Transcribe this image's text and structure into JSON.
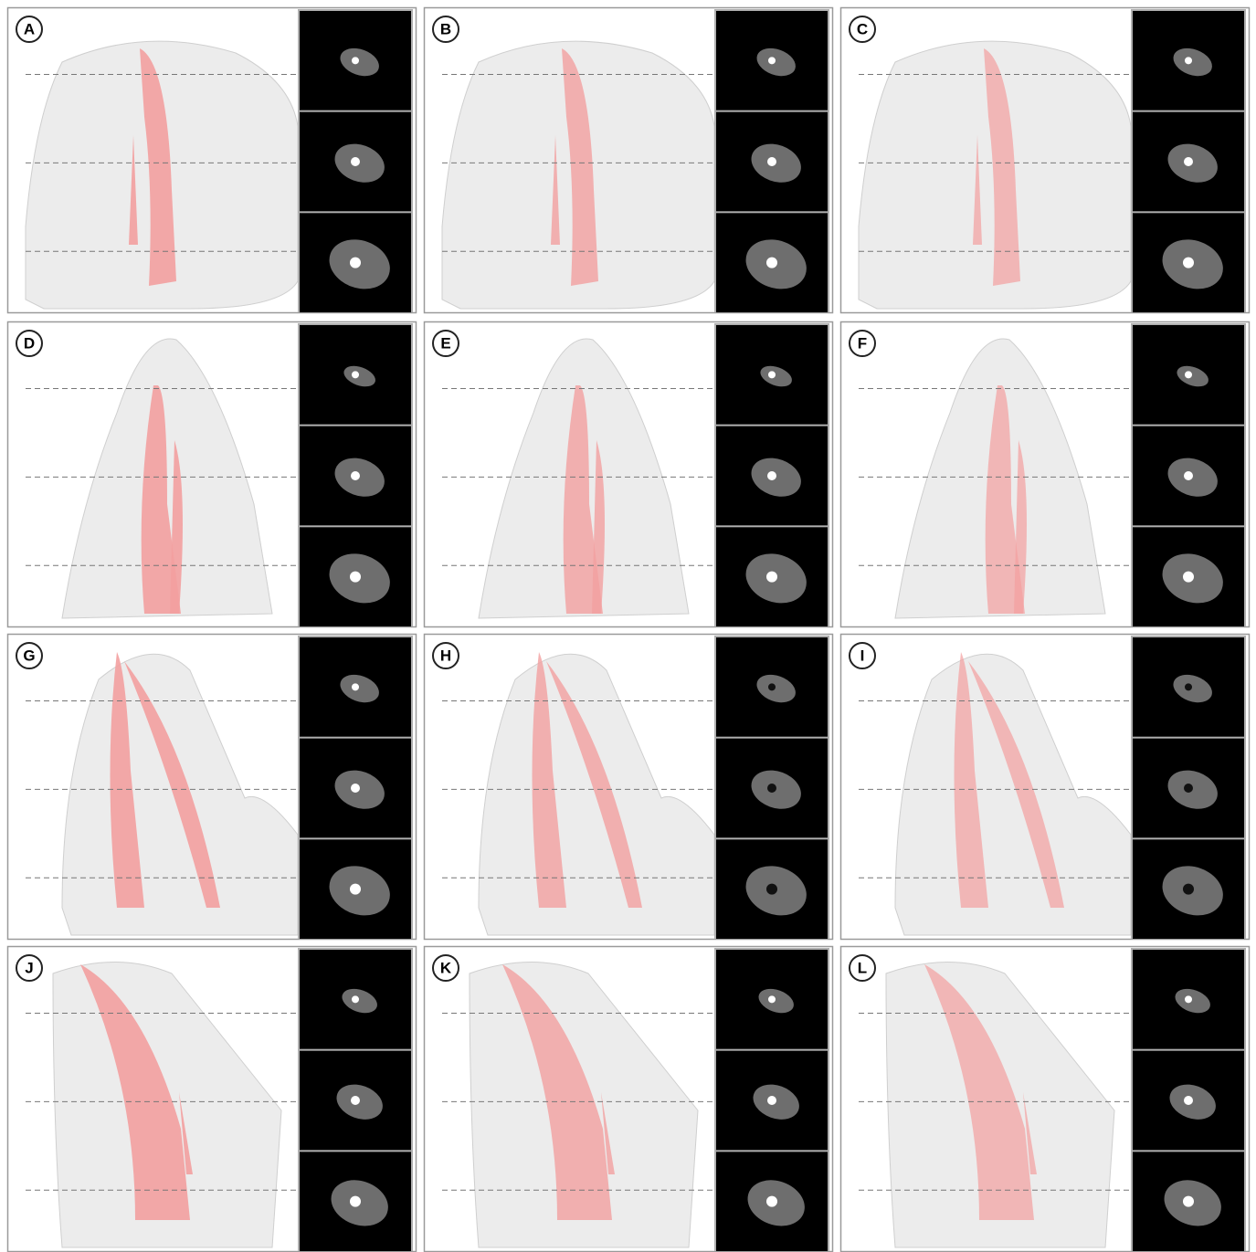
{
  "panels": [
    {
      "label": "A"
    },
    {
      "label": "B"
    },
    {
      "label": "C"
    },
    {
      "label": "D"
    },
    {
      "label": "E"
    },
    {
      "label": "F"
    },
    {
      "label": "G"
    },
    {
      "label": "H"
    },
    {
      "label": "I"
    },
    {
      "label": "J"
    },
    {
      "label": "K"
    },
    {
      "label": "L"
    }
  ]
}
